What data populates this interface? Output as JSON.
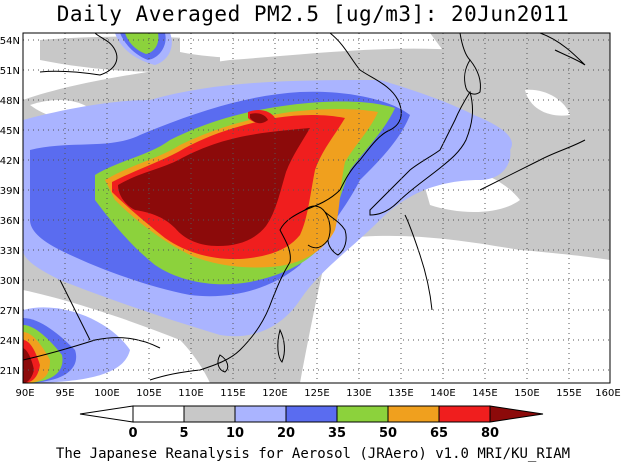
{
  "title": "Daily Averaged PM2.5 [ug/m3]: 20Jun2011",
  "footer": "The Japanese Reanalysis for Aerosol (JRAero) v1.0 MRI/KU_RIAM",
  "map": {
    "lon_range": [
      90,
      160
    ],
    "lat_range": [
      20,
      55
    ],
    "x_ticks": [
      "90E",
      "95E",
      "100E",
      "105E",
      "110E",
      "115E",
      "120E",
      "125E",
      "130E",
      "135E",
      "140E",
      "145E",
      "150E",
      "155E",
      "160E"
    ],
    "y_ticks": [
      "54N",
      "51N",
      "48N",
      "45N",
      "42N",
      "39N",
      "36N",
      "33N",
      "30N",
      "27N",
      "24N",
      "21N"
    ],
    "gridlines": "dotted"
  },
  "colorbar": {
    "labels": [
      "0",
      "5",
      "10",
      "20",
      "35",
      "50",
      "65",
      "80"
    ],
    "colors": [
      "#ffffff",
      "#c8c8c8",
      "#aab4ff",
      "#5a6cf0",
      "#8cd23c",
      "#f0a01e",
      "#f01e1e",
      "#8c0a0a"
    ]
  },
  "chart_data": {
    "type": "heatmap",
    "title": "Daily Averaged PM2.5 [ug/m3]: 20Jun2011",
    "x_range": [
      90,
      160
    ],
    "y_range": [
      20,
      55
    ],
    "levels": [
      0,
      5,
      10,
      20,
      35,
      50,
      65,
      80
    ],
    "level_colors": [
      "#ffffff",
      "#c8c8c8",
      "#aab4ff",
      "#5a6cf0",
      "#8cd23c",
      "#f0a01e",
      "#f01e1e",
      "#8c0a0a"
    ]
  }
}
